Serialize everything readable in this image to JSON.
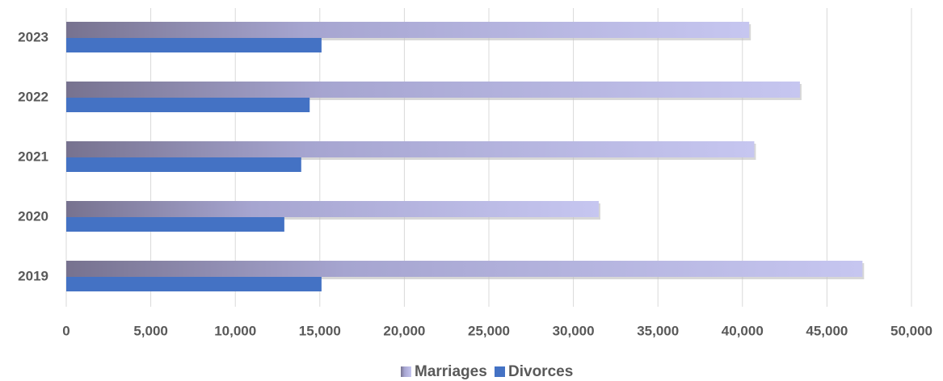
{
  "chart_data": {
    "type": "bar",
    "orientation": "horizontal",
    "categories": [
      "2019",
      "2020",
      "2021",
      "2022",
      "2023"
    ],
    "series": [
      {
        "name": "Marriages",
        "color": "#c6c6f0",
        "values": [
          47100,
          31500,
          40700,
          43400,
          40400
        ]
      },
      {
        "name": "Divorces",
        "color": "#4472c4",
        "values": [
          15100,
          12900,
          13900,
          14400,
          15100
        ]
      }
    ],
    "xlim": [
      0,
      50000
    ],
    "xticks": [
      0,
      {
        "value": 5000,
        "label": "5,000"
      },
      {
        "value": 10000,
        "label": "10,000"
      },
      {
        "value": 15000,
        "label": "15,000"
      },
      {
        "value": 20000,
        "label": "20,000"
      },
      {
        "value": 25000,
        "label": "25,000"
      },
      {
        "value": 30000,
        "label": "30,000"
      },
      {
        "value": 35000,
        "label": "35,000"
      },
      {
        "value": 40000,
        "label": "40,000"
      },
      {
        "value": 45000,
        "label": "45,000"
      },
      {
        "value": 50000,
        "label": "50,000"
      }
    ],
    "grid": true,
    "legend": "bottom"
  }
}
